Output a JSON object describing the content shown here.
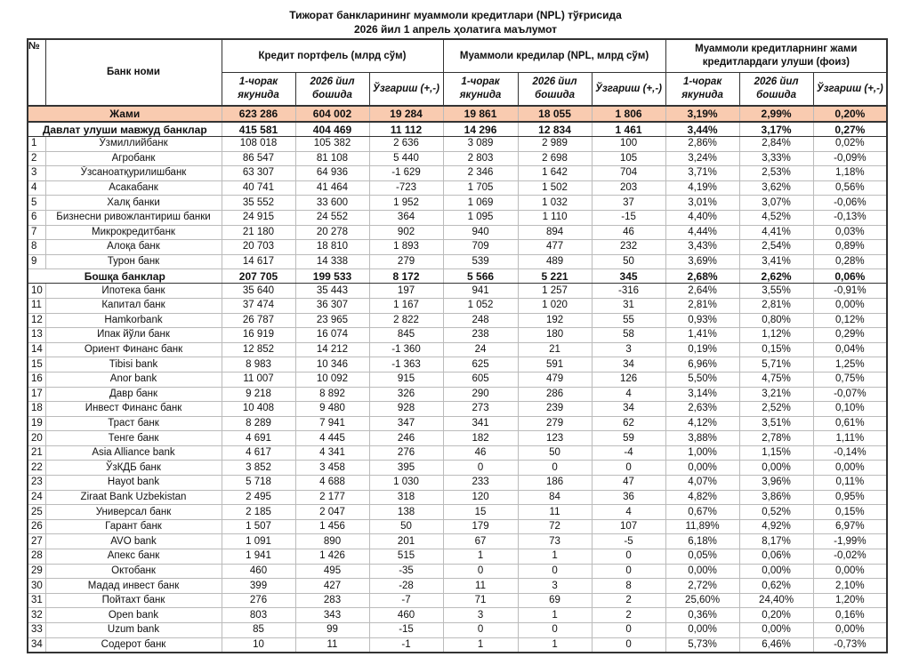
{
  "title": "Тижорат банкларининг муаммоли кредитлари (NPL) тўғрисида",
  "subtitle": "2026 йил 1 апрель ҳолатига маълумот",
  "headers": {
    "no": "№",
    "bank": "Банк номи",
    "group1": "Кредит портфель (млрд сўм)",
    "group2": "Муаммоли кредилар (NPL, млрд сўм)",
    "group3": "Муаммоли кредитларнинг жами кредитлардаги улуши (фоиз)",
    "sub": [
      "1-чорак якунида",
      "2026 йил бошида",
      "Ўзгариш (+,-)",
      "1-чорак якунида",
      "2026 йил бошида",
      "Ўзгариш (+,-)",
      "1-чорак якунида",
      "2026 йил бошида",
      "Ўзгариш (+,-)"
    ]
  },
  "total": {
    "name": "Жами",
    "values": [
      "623 286",
      "604 002",
      "19 284",
      "19 861",
      "18 055",
      "1 806",
      "3,19%",
      "2,99%",
      "0,20%"
    ]
  },
  "colors": {
    "total_row_bg": "#f9cbb0"
  },
  "groups": [
    {
      "name": "Давлат улуши мавжуд банклар",
      "values": [
        "415 581",
        "404 469",
        "11 112",
        "14 296",
        "12 834",
        "1 461",
        "3,44%",
        "3,17%",
        "0,27%"
      ],
      "rows": [
        {
          "no": "1",
          "name": "Ўзмиллийбанк",
          "values": [
            "108 018",
            "105 382",
            "2 636",
            "3 089",
            "2 989",
            "100",
            "2,86%",
            "2,84%",
            "0,02%"
          ]
        },
        {
          "no": "2",
          "name": "Агробанк",
          "values": [
            "86 547",
            "81 108",
            "5 440",
            "2 803",
            "2 698",
            "105",
            "3,24%",
            "3,33%",
            "-0,09%"
          ]
        },
        {
          "no": "3",
          "name": "Ўзсаноатқурилишбанк",
          "values": [
            "63 307",
            "64 936",
            "-1 629",
            "2 346",
            "1 642",
            "704",
            "3,71%",
            "2,53%",
            "1,18%"
          ]
        },
        {
          "no": "4",
          "name": "Асакабанк",
          "values": [
            "40 741",
            "41 464",
            "-723",
            "1 705",
            "1 502",
            "203",
            "4,19%",
            "3,62%",
            "0,56%"
          ]
        },
        {
          "no": "5",
          "name": "Халқ банки",
          "values": [
            "35 552",
            "33 600",
            "1 952",
            "1 069",
            "1 032",
            "37",
            "3,01%",
            "3,07%",
            "-0,06%"
          ]
        },
        {
          "no": "6",
          "name": "Бизнесни ривожлантириш банки",
          "values": [
            "24 915",
            "24 552",
            "364",
            "1 095",
            "1 110",
            "-15",
            "4,40%",
            "4,52%",
            "-0,13%"
          ]
        },
        {
          "no": "7",
          "name": "Микрокредитбанк",
          "values": [
            "21 180",
            "20 278",
            "902",
            "940",
            "894",
            "46",
            "4,44%",
            "4,41%",
            "0,03%"
          ]
        },
        {
          "no": "8",
          "name": "Алоқа банк",
          "values": [
            "20 703",
            "18 810",
            "1 893",
            "709",
            "477",
            "232",
            "3,43%",
            "2,54%",
            "0,89%"
          ]
        },
        {
          "no": "9",
          "name": "Турон банк",
          "values": [
            "14 617",
            "14 338",
            "279",
            "539",
            "489",
            "50",
            "3,69%",
            "3,41%",
            "0,28%"
          ]
        }
      ]
    },
    {
      "name": "Бошқа банклар",
      "values": [
        "207 705",
        "199 533",
        "8 172",
        "5 566",
        "5 221",
        "345",
        "2,68%",
        "2,62%",
        "0,06%"
      ],
      "rows": [
        {
          "no": "10",
          "name": "Ипотека банк",
          "values": [
            "35 640",
            "35 443",
            "197",
            "941",
            "1 257",
            "-316",
            "2,64%",
            "3,55%",
            "-0,91%"
          ]
        },
        {
          "no": "11",
          "name": "Капитал банк",
          "values": [
            "37 474",
            "36 307",
            "1 167",
            "1 052",
            "1 020",
            "31",
            "2,81%",
            "2,81%",
            "0,00%"
          ]
        },
        {
          "no": "12",
          "name": "Hamkorbank",
          "values": [
            "26 787",
            "23 965",
            "2 822",
            "248",
            "192",
            "55",
            "0,93%",
            "0,80%",
            "0,12%"
          ]
        },
        {
          "no": "13",
          "name": "Ипак йўли банк",
          "values": [
            "16 919",
            "16 074",
            "845",
            "238",
            "180",
            "58",
            "1,41%",
            "1,12%",
            "0,29%"
          ]
        },
        {
          "no": "14",
          "name": "Ориент Финанс банк",
          "values": [
            "12 852",
            "14 212",
            "-1 360",
            "24",
            "21",
            "3",
            "0,19%",
            "0,15%",
            "0,04%"
          ]
        },
        {
          "no": "15",
          "name": "Tibisi bank",
          "values": [
            "8 983",
            "10 346",
            "-1 363",
            "625",
            "591",
            "34",
            "6,96%",
            "5,71%",
            "1,25%"
          ]
        },
        {
          "no": "16",
          "name": "Anor bank",
          "values": [
            "11 007",
            "10 092",
            "915",
            "605",
            "479",
            "126",
            "5,50%",
            "4,75%",
            "0,75%"
          ]
        },
        {
          "no": "17",
          "name": "Давр банк",
          "values": [
            "9 218",
            "8 892",
            "326",
            "290",
            "286",
            "4",
            "3,14%",
            "3,21%",
            "-0,07%"
          ]
        },
        {
          "no": "18",
          "name": "Инвест Финанс банк",
          "values": [
            "10 408",
            "9 480",
            "928",
            "273",
            "239",
            "34",
            "2,63%",
            "2,52%",
            "0,10%"
          ]
        },
        {
          "no": "19",
          "name": "Траст банк",
          "values": [
            "8 289",
            "7 941",
            "347",
            "341",
            "279",
            "62",
            "4,12%",
            "3,51%",
            "0,61%"
          ]
        },
        {
          "no": "20",
          "name": "Тенге банк",
          "values": [
            "4 691",
            "4 445",
            "246",
            "182",
            "123",
            "59",
            "3,88%",
            "2,78%",
            "1,11%"
          ]
        },
        {
          "no": "21",
          "name": "Asia Alliance bank",
          "values": [
            "4 617",
            "4 341",
            "276",
            "46",
            "50",
            "-4",
            "1,00%",
            "1,15%",
            "-0,14%"
          ]
        },
        {
          "no": "22",
          "name": "ЎзКДБ банк",
          "values": [
            "3 852",
            "3 458",
            "395",
            "0",
            "0",
            "0",
            "0,00%",
            "0,00%",
            "0,00%"
          ]
        },
        {
          "no": "23",
          "name": "Hayot bank",
          "values": [
            "5 718",
            "4 688",
            "1 030",
            "233",
            "186",
            "47",
            "4,07%",
            "3,96%",
            "0,11%"
          ]
        },
        {
          "no": "24",
          "name": "Ziraat Bank Uzbekistan",
          "values": [
            "2 495",
            "2 177",
            "318",
            "120",
            "84",
            "36",
            "4,82%",
            "3,86%",
            "0,95%"
          ]
        },
        {
          "no": "25",
          "name": "Универсал банк",
          "values": [
            "2 185",
            "2 047",
            "138",
            "15",
            "11",
            "4",
            "0,67%",
            "0,52%",
            "0,15%"
          ]
        },
        {
          "no": "26",
          "name": "Гарант банк",
          "values": [
            "1 507",
            "1 456",
            "50",
            "179",
            "72",
            "107",
            "11,89%",
            "4,92%",
            "6,97%"
          ]
        },
        {
          "no": "27",
          "name": "AVO bank",
          "values": [
            "1 091",
            "890",
            "201",
            "67",
            "73",
            "-5",
            "6,18%",
            "8,17%",
            "-1,99%"
          ]
        },
        {
          "no": "28",
          "name": "Апекс банк",
          "values": [
            "1 941",
            "1 426",
            "515",
            "1",
            "1",
            "0",
            "0,05%",
            "0,06%",
            "-0,02%"
          ]
        },
        {
          "no": "29",
          "name": "Октобанк",
          "values": [
            "460",
            "495",
            "-35",
            "0",
            "0",
            "0",
            "0,00%",
            "0,00%",
            "0,00%"
          ]
        },
        {
          "no": "30",
          "name": "Мадад инвест банк",
          "values": [
            "399",
            "427",
            "-28",
            "11",
            "3",
            "8",
            "2,72%",
            "0,62%",
            "2,10%"
          ]
        },
        {
          "no": "31",
          "name": "Пойтахт банк",
          "values": [
            "276",
            "283",
            "-7",
            "71",
            "69",
            "2",
            "25,60%",
            "24,40%",
            "1,20%"
          ]
        },
        {
          "no": "32",
          "name": "Open bank",
          "values": [
            "803",
            "343",
            "460",
            "3",
            "1",
            "2",
            "0,36%",
            "0,20%",
            "0,16%"
          ]
        },
        {
          "no": "33",
          "name": "Uzum bank",
          "values": [
            "85",
            "99",
            "-15",
            "0",
            "0",
            "0",
            "0,00%",
            "0,00%",
            "0,00%"
          ]
        },
        {
          "no": "34",
          "name": "Содерот банк",
          "values": [
            "10",
            "11",
            "-1",
            "1",
            "1",
            "0",
            "5,73%",
            "6,46%",
            "-0,73%"
          ]
        }
      ]
    }
  ]
}
